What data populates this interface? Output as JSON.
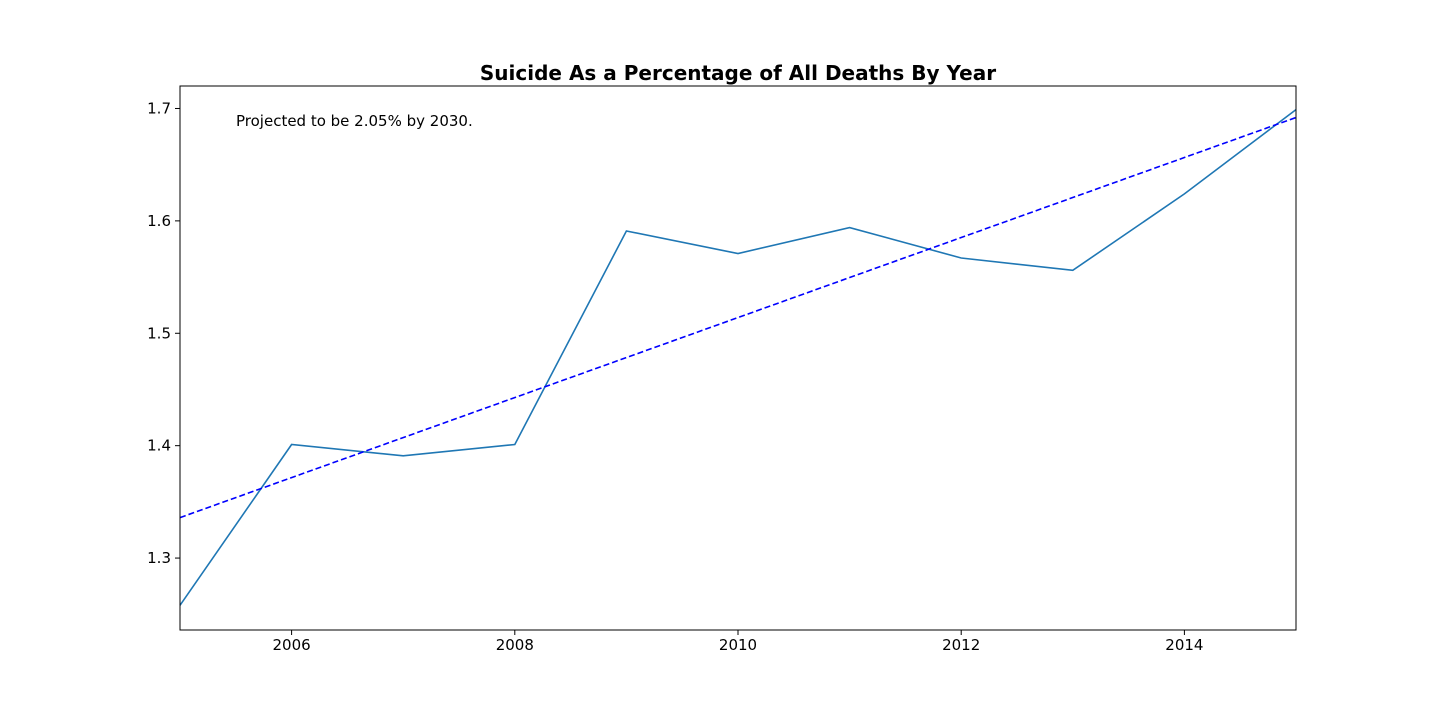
{
  "chart_data": {
    "type": "line",
    "title": "Suicide As a Percentage of All Deaths By Year",
    "xlabel": "",
    "ylabel": "",
    "xlim": [
      2005,
      2015
    ],
    "ylim": [
      1.236,
      1.72
    ],
    "x_ticks": [
      2006,
      2008,
      2010,
      2012,
      2014
    ],
    "y_ticks": [
      1.3,
      1.4,
      1.5,
      1.6,
      1.7
    ],
    "x_tick_labels": [
      "2006",
      "2008",
      "2010",
      "2012",
      "2014"
    ],
    "y_tick_labels": [
      "1.3",
      "1.4",
      "1.5",
      "1.6",
      "1.7"
    ],
    "grid": false,
    "legend": "none",
    "series": [
      {
        "style": "solid",
        "color": "#1f77b4",
        "x": [
          2005,
          2006,
          2007,
          2008,
          2009,
          2010,
          2011,
          2012,
          2013,
          2014,
          2015
        ],
        "values": [
          1.258,
          1.401,
          1.391,
          1.401,
          1.591,
          1.571,
          1.594,
          1.567,
          1.556,
          1.624,
          1.699
        ]
      },
      {
        "style": "dashed",
        "color": "#0000ff",
        "x": [
          2005,
          2015
        ],
        "values": [
          1.336,
          1.692
        ]
      }
    ],
    "annotations": [
      {
        "text": "Projected to be 2.05% by 2030."
      }
    ]
  }
}
